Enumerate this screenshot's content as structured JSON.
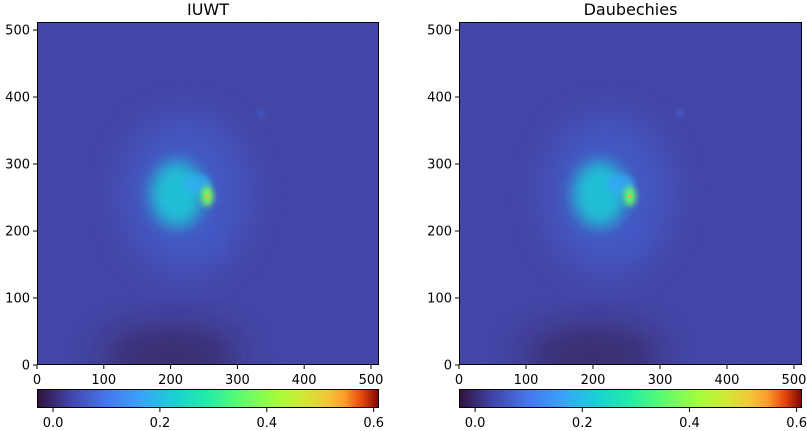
{
  "chart_data": [
    {
      "type": "heatmap",
      "title": "IUWT",
      "xlim": [
        0,
        512
      ],
      "ylim": [
        0,
        512
      ],
      "xticks": [
        0,
        100,
        200,
        300,
        400,
        500
      ],
      "yticks": [
        0,
        100,
        200,
        300,
        400,
        500
      ],
      "colorbar": {
        "colormap": "turbo",
        "range": [
          -0.03,
          0.61
        ],
        "ticks": [
          0.0,
          0.2,
          0.4,
          0.6
        ],
        "tick_labels": [
          "0.0",
          "0.2",
          "0.4",
          "0.6"
        ],
        "placement": "bottom"
      },
      "features": [
        {
          "x": 210,
          "y": 255,
          "value": 0.22
        },
        {
          "x": 255,
          "y": 252,
          "value": 0.38
        },
        {
          "x": 240,
          "y": 270,
          "value": 0.18
        },
        {
          "x": 335,
          "y": 375,
          "value": 0.08
        },
        {
          "x": 265,
          "y": 190,
          "value": 0.06
        }
      ],
      "background_value": 0.03,
      "dark_region": {
        "x": 200,
        "y": 15,
        "value": -0.03
      }
    },
    {
      "type": "heatmap",
      "title": "Daubechies",
      "xlim": [
        0,
        512
      ],
      "ylim": [
        0,
        512
      ],
      "xticks": [
        0,
        100,
        200,
        300,
        400,
        500
      ],
      "yticks": [
        0,
        100,
        200,
        300,
        400,
        500
      ],
      "colorbar": {
        "colormap": "turbo",
        "range": [
          -0.03,
          0.61
        ],
        "ticks": [
          0.0,
          0.2,
          0.4,
          0.6
        ],
        "tick_labels": [
          "0.0",
          "0.2",
          "0.4",
          "0.6"
        ],
        "placement": "bottom"
      },
      "features": [
        {
          "x": 210,
          "y": 255,
          "value": 0.22
        },
        {
          "x": 255,
          "y": 252,
          "value": 0.36
        },
        {
          "x": 240,
          "y": 270,
          "value": 0.17
        },
        {
          "x": 330,
          "y": 375,
          "value": 0.08
        },
        {
          "x": 265,
          "y": 190,
          "value": 0.06
        }
      ],
      "background_value": 0.03,
      "dark_region": {
        "x": 200,
        "y": 15,
        "value": -0.03
      }
    }
  ]
}
